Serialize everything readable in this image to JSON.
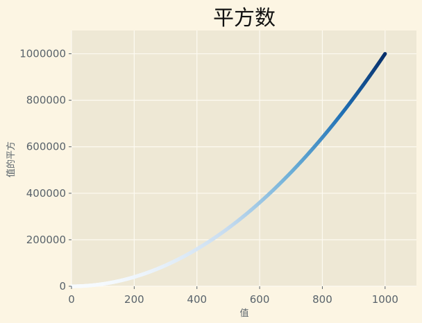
{
  "chart_data": {
    "type": "scatter",
    "title": "平方数",
    "xlabel": "值",
    "ylabel": "值的平方",
    "x_range": [
      1,
      1000
    ],
    "y_function": "x^2",
    "xlim": [
      0,
      1100
    ],
    "ylim": [
      0,
      1100000
    ],
    "x_ticks": [
      "0",
      "200",
      "400",
      "600",
      "800",
      "1000"
    ],
    "y_ticks": [
      "0",
      "200000",
      "400000",
      "600000",
      "800000",
      "1000000"
    ],
    "colormap": "Blues",
    "grid": true,
    "colors": {
      "figure_bg": "#fcf5e3",
      "axes_bg": "#eee8d5",
      "grid": "#fdfaf2",
      "text": "#59636b",
      "cmap_low": "#f7fbff",
      "cmap_mid": "#6baed6",
      "cmap_high": "#08306b"
    }
  }
}
